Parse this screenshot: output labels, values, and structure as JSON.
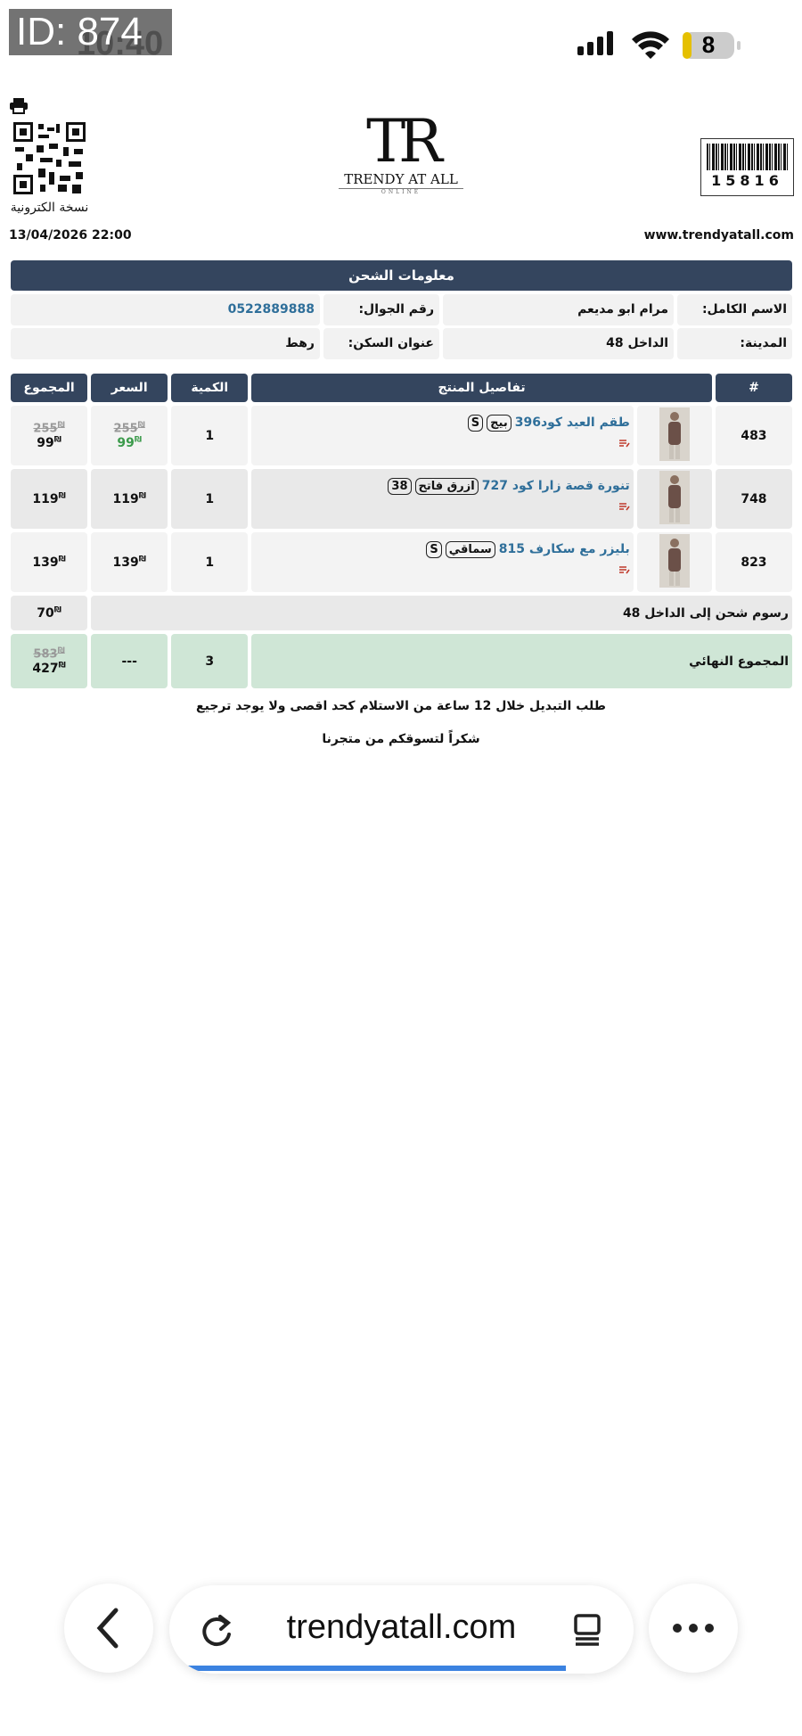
{
  "status_bar": {
    "id_label": "ID: 874",
    "time": "10:40",
    "battery": "8"
  },
  "header": {
    "qr_caption": "نسخة الكترونية",
    "datetime": "13/04/2026 22:00",
    "website": "www.trendyatall.com",
    "barcode_number": "15816",
    "logo_mark": "TR",
    "logo_text": "TRENDY AT ALL",
    "logo_sub": "ONLINE"
  },
  "shipping": {
    "title": "معلومات الشحن",
    "name_label": "الاسم الكامل:",
    "name": "مرام ابو مديعم",
    "phone_label": "رقم الجوال:",
    "phone": "0522889888",
    "city_label": "المدينة:",
    "city": "الداخل 48",
    "address_label": "عنوان السكن:",
    "address": "رهط"
  },
  "table": {
    "currency": "₪",
    "headers": [
      "#",
      "تفاصيل المنتج",
      "الكمية",
      "السعر",
      "المجموع"
    ],
    "rows": [
      {
        "id": "483",
        "name": "طقم العيد كود396",
        "tags": [
          "بيج",
          "S"
        ],
        "qty": "1",
        "price_old": "255",
        "price": "99",
        "total_old": "255",
        "total": "99"
      },
      {
        "id": "748",
        "name": "تنورة قصة زارا كود 727",
        "tags": [
          "ازرق فاتح",
          "38"
        ],
        "qty": "1",
        "price": "119",
        "total": "119"
      },
      {
        "id": "823",
        "name": "بليزر مع سكارف 815",
        "tags": [
          "سماقي",
          "S"
        ],
        "qty": "1",
        "price": "139",
        "total": "139"
      }
    ],
    "shipping_row": {
      "label": "رسوم شحن إلى الداخل 48",
      "total": "70"
    },
    "total_row": {
      "label": "المجموع النهائي",
      "qty": "3",
      "price": "---",
      "total_old": "583",
      "total": "427"
    }
  },
  "notes": [
    "طلب التبديل خلال 12 ساعة من الاستلام كحد اقصى ولا يوجد ترجيع",
    "شكراً لتسوقكم من متجرنا"
  ],
  "browser": {
    "url": "trendyatall.com"
  }
}
